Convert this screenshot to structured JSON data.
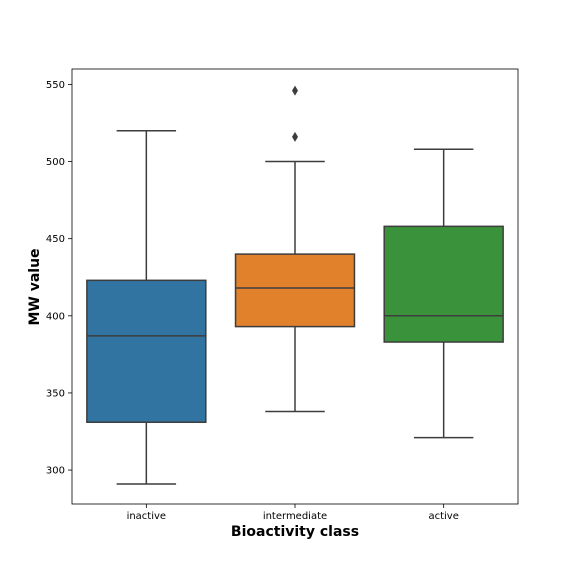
{
  "chart_data": {
    "type": "box",
    "xlabel": "Bioactivity class",
    "ylabel": "MW value",
    "ylim": [
      278,
      560
    ],
    "yticks": [
      300,
      350,
      400,
      450,
      500,
      550
    ],
    "categories": [
      "inactive",
      "intermediate",
      "active"
    ],
    "boxes": [
      {
        "category": "inactive",
        "whisker_low": 291,
        "q1": 331,
        "median": 387,
        "q3": 423,
        "whisker_high": 520,
        "outliers": [],
        "color": "#3274a1"
      },
      {
        "category": "intermediate",
        "whisker_low": 338,
        "q1": 393,
        "median": 418,
        "q3": 440,
        "whisker_high": 500,
        "outliers": [
          516,
          546
        ],
        "color": "#e1812c"
      },
      {
        "category": "active",
        "whisker_low": 321,
        "q1": 383,
        "median": 400,
        "q3": 458,
        "whisker_high": 508,
        "outliers": [],
        "color": "#3a923a"
      }
    ],
    "grid": false,
    "legend": "none"
  }
}
